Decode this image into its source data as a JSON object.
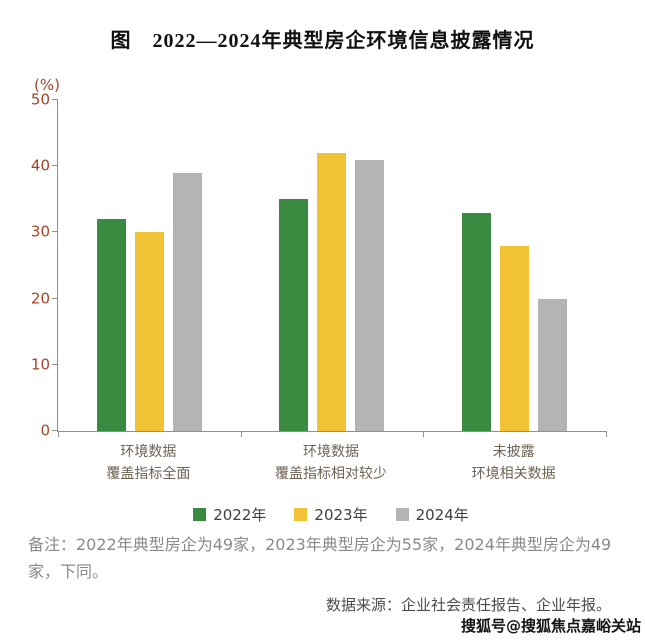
{
  "title": "图　2022—2024年典型房企环境信息披露情况",
  "chart_data": {
    "type": "bar",
    "title": "图 2022—2024年典型房企环境信息披露情况",
    "unit_label": "(%)",
    "ylabel": "(%)",
    "xlabel": "",
    "ylim": [
      0,
      50
    ],
    "yticks": [
      0,
      10,
      20,
      30,
      40,
      50
    ],
    "grid": false,
    "legend_position": "bottom",
    "categories": [
      [
        "环境数据",
        "覆盖指标全面"
      ],
      [
        "环境数据",
        "覆盖指标相对较少"
      ],
      [
        "未披露",
        "环境相关数据"
      ]
    ],
    "series": [
      {
        "name": "2022年",
        "color": "#3a8a42",
        "values": [
          32,
          35,
          33
        ]
      },
      {
        "name": "2023年",
        "color": "#f1c233",
        "values": [
          30,
          42,
          28
        ]
      },
      {
        "name": "2024年",
        "color": "#b4b4b4",
        "values": [
          39,
          41,
          20
        ]
      }
    ]
  },
  "notes": {
    "text": "备注：2022年典型房企为49家，2023年典型房企为55家，2024年典型房企为49家，下同。"
  },
  "source": "数据来源：企业社会责任报告、企业年报。",
  "watermark": "搜狐号@搜狐焦点嘉峪关站"
}
